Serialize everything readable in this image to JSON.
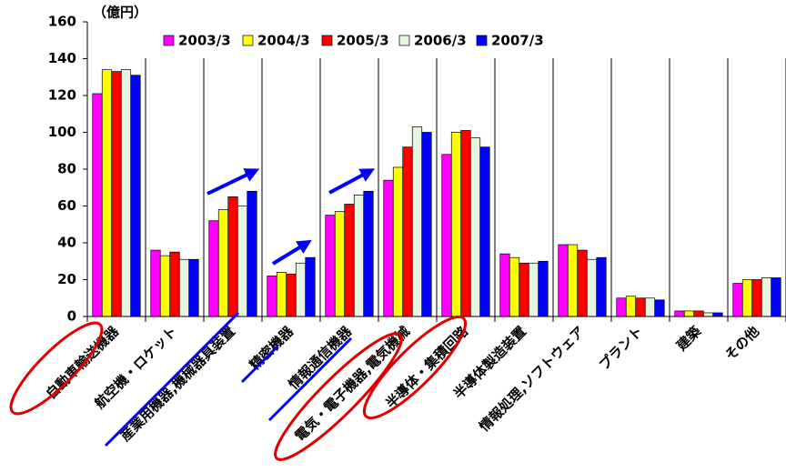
{
  "chart_data": {
    "type": "bar",
    "y_label": "（億円）",
    "categories": [
      "自動車輸送機器",
      "航空機・ロケット",
      "産業用機器,機械器具装置",
      "精密機器",
      "情報通信機器",
      "電気・電子機器,電気機械",
      "半導体・集積回路",
      "半導体製造装置",
      "情報処理,ソフトウェア",
      "プラント",
      "建築",
      "その他"
    ],
    "series": [
      {
        "name": "2003/3",
        "color": "#ff00ff",
        "values": [
          121,
          36,
          52,
          22,
          55,
          74,
          88,
          34,
          39,
          10,
          3,
          18
        ]
      },
      {
        "name": "2004/3",
        "color": "#ffff00",
        "values": [
          134,
          33,
          58,
          24,
          57,
          81,
          100,
          32,
          39,
          11,
          3,
          20
        ]
      },
      {
        "name": "2005/3",
        "color": "#ff0000",
        "values": [
          133,
          35,
          65,
          23,
          61,
          92,
          101,
          29,
          36,
          10,
          3,
          20
        ]
      },
      {
        "name": "2006/3",
        "color": "#e6f5e0",
        "values": [
          134,
          31,
          60,
          29,
          66,
          103,
          97,
          29,
          31,
          10,
          2,
          21
        ]
      },
      {
        "name": "2007/3",
        "color": "#0000ff",
        "values": [
          131,
          31,
          68,
          32,
          68,
          100,
          92,
          30,
          32,
          9,
          2,
          21
        ]
      }
    ],
    "ylim": [
      0,
      160
    ],
    "yticks": [
      0,
      20,
      40,
      60,
      80,
      100,
      120,
      140,
      160
    ]
  }
}
